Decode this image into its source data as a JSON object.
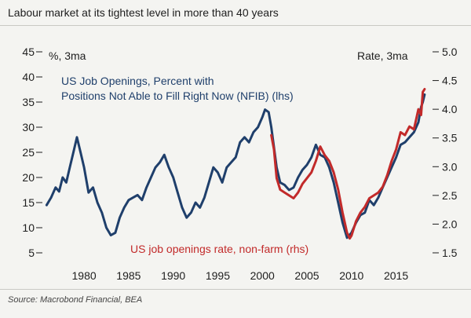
{
  "title": "Labour market at its tightest level in more than 40 years",
  "source": "Source: Macrobond Financial, BEA",
  "chart_data": {
    "type": "line",
    "left_axis_unit": "%, 3ma",
    "right_axis_unit": "Rate, 3ma",
    "left_ylim": [
      5,
      45
    ],
    "left_ticks": [
      "45",
      "40",
      "35",
      "30",
      "25",
      "20",
      "15",
      "10",
      "5"
    ],
    "right_ylim": [
      1.5,
      5.0
    ],
    "right_ticks": [
      "5.0",
      "4.5",
      "4.0",
      "3.5",
      "3.0",
      "2.5",
      "2.0",
      "1.5"
    ],
    "xlim": [
      1975.5,
      2019
    ],
    "x_ticks": [
      "1980",
      "1985",
      "1990",
      "1995",
      "2000",
      "2005",
      "2010",
      "2015"
    ],
    "grid": false,
    "series": [
      {
        "name": "US Job Openings, Percent with Positions Not Able to Fill Right Now (NFIB) (lhs)",
        "axis": "left",
        "color": "#1f3f6b",
        "points": [
          [
            1975.8,
            14.5
          ],
          [
            1976.3,
            16
          ],
          [
            1976.8,
            18
          ],
          [
            1977.2,
            17.2
          ],
          [
            1977.6,
            20
          ],
          [
            1978.0,
            19
          ],
          [
            1978.4,
            22
          ],
          [
            1978.8,
            25
          ],
          [
            1979.2,
            28
          ],
          [
            1979.6,
            25
          ],
          [
            1980.0,
            22
          ],
          [
            1980.5,
            17
          ],
          [
            1981.0,
            18
          ],
          [
            1981.5,
            15
          ],
          [
            1982.0,
            13
          ],
          [
            1982.5,
            10
          ],
          [
            1983.0,
            8.5
          ],
          [
            1983.5,
            9
          ],
          [
            1984.0,
            12
          ],
          [
            1984.5,
            14
          ],
          [
            1985.0,
            15.5
          ],
          [
            1985.5,
            16
          ],
          [
            1986.0,
            16.5
          ],
          [
            1986.5,
            15.5
          ],
          [
            1987.0,
            18
          ],
          [
            1987.5,
            20
          ],
          [
            1988.0,
            22
          ],
          [
            1988.5,
            23
          ],
          [
            1989.0,
            24.5
          ],
          [
            1989.5,
            22
          ],
          [
            1990.0,
            20
          ],
          [
            1990.5,
            17
          ],
          [
            1991.0,
            14
          ],
          [
            1991.5,
            12
          ],
          [
            1992.0,
            13
          ],
          [
            1992.5,
            15
          ],
          [
            1993.0,
            14
          ],
          [
            1993.5,
            16
          ],
          [
            1994.0,
            19
          ],
          [
            1994.5,
            22
          ],
          [
            1995.0,
            21
          ],
          [
            1995.5,
            19
          ],
          [
            1996.0,
            22
          ],
          [
            1996.5,
            23
          ],
          [
            1997.0,
            24
          ],
          [
            1997.5,
            27
          ],
          [
            1998.0,
            28
          ],
          [
            1998.5,
            27
          ],
          [
            1999.0,
            29
          ],
          [
            1999.5,
            30
          ],
          [
            2000.0,
            32
          ],
          [
            2000.3,
            33.5
          ],
          [
            2000.7,
            33
          ],
          [
            2001.0,
            30
          ],
          [
            2001.3,
            26
          ],
          [
            2001.6,
            22
          ],
          [
            2002.0,
            19
          ],
          [
            2002.5,
            18.5
          ],
          [
            2003.0,
            17.5
          ],
          [
            2003.5,
            18
          ],
          [
            2004.0,
            20
          ],
          [
            2004.5,
            21.5
          ],
          [
            2005.0,
            22.5
          ],
          [
            2005.5,
            24
          ],
          [
            2006.0,
            26.5
          ],
          [
            2006.5,
            24.5
          ],
          [
            2007.0,
            24
          ],
          [
            2007.5,
            22
          ],
          [
            2008.0,
            19
          ],
          [
            2008.5,
            15
          ],
          [
            2009.0,
            11
          ],
          [
            2009.5,
            8
          ],
          [
            2010.0,
            9
          ],
          [
            2010.5,
            11
          ],
          [
            2011.0,
            12.5
          ],
          [
            2011.5,
            13
          ],
          [
            2012.0,
            15.5
          ],
          [
            2012.5,
            14.5
          ],
          [
            2013.0,
            16
          ],
          [
            2013.5,
            18
          ],
          [
            2014.0,
            20
          ],
          [
            2014.5,
            22
          ],
          [
            2015.0,
            24
          ],
          [
            2015.5,
            26.5
          ],
          [
            2016.0,
            27
          ],
          [
            2016.5,
            28
          ],
          [
            2017.0,
            29
          ],
          [
            2017.5,
            31
          ],
          [
            2017.8,
            34
          ],
          [
            2018.0,
            35
          ],
          [
            2018.2,
            36.5
          ]
        ]
      },
      {
        "name": "US job openings rate, non-farm (rhs)",
        "axis": "right",
        "color": "#c22a2a",
        "points": [
          [
            2001.0,
            3.55
          ],
          [
            2001.3,
            3.3
          ],
          [
            2001.6,
            2.8
          ],
          [
            2002.0,
            2.6
          ],
          [
            2002.5,
            2.55
          ],
          [
            2003.0,
            2.5
          ],
          [
            2003.5,
            2.45
          ],
          [
            2004.0,
            2.55
          ],
          [
            2004.5,
            2.7
          ],
          [
            2005.0,
            2.8
          ],
          [
            2005.5,
            2.9
          ],
          [
            2006.0,
            3.1
          ],
          [
            2006.5,
            3.35
          ],
          [
            2007.0,
            3.2
          ],
          [
            2007.5,
            3.1
          ],
          [
            2008.0,
            2.9
          ],
          [
            2008.5,
            2.6
          ],
          [
            2009.0,
            2.2
          ],
          [
            2009.5,
            1.85
          ],
          [
            2009.8,
            1.75
          ],
          [
            2010.0,
            1.8
          ],
          [
            2010.5,
            2.05
          ],
          [
            2011.0,
            2.2
          ],
          [
            2011.5,
            2.3
          ],
          [
            2012.0,
            2.45
          ],
          [
            2012.5,
            2.5
          ],
          [
            2013.0,
            2.55
          ],
          [
            2013.5,
            2.65
          ],
          [
            2014.0,
            2.85
          ],
          [
            2014.5,
            3.1
          ],
          [
            2015.0,
            3.3
          ],
          [
            2015.5,
            3.6
          ],
          [
            2016.0,
            3.55
          ],
          [
            2016.5,
            3.7
          ],
          [
            2017.0,
            3.65
          ],
          [
            2017.5,
            4.0
          ],
          [
            2017.8,
            3.9
          ],
          [
            2018.0,
            4.3
          ],
          [
            2018.2,
            4.35
          ]
        ]
      }
    ],
    "annotations": [
      {
        "text": "US Job Openings, Percent with",
        "color": "#1f3f6b"
      },
      {
        "text": "Positions Not Able to Fill Right Now (NFIB) (lhs)",
        "color": "#1f3f6b"
      },
      {
        "text": "US job openings rate, non-farm (rhs)",
        "color": "#c22a2a"
      }
    ]
  }
}
